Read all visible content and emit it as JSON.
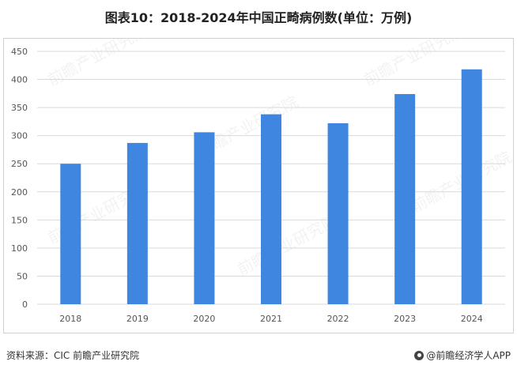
{
  "title": "图表10：2018-2024年中国正畸病例数(单位：万例)",
  "source": "资料来源：CIC 前瞻产业研究院",
  "brand": "@前瞻经济学人APP",
  "watermark": "前瞻产业研究院",
  "colors": {
    "bar": "#3f86e0",
    "grid": "#d9d9d9",
    "axis_text": "#555555"
  },
  "chart_data": {
    "type": "bar",
    "categories": [
      "2018",
      "2019",
      "2020",
      "2021",
      "2022",
      "2023",
      "2024"
    ],
    "values": [
      250,
      287,
      306,
      338,
      322,
      374,
      418
    ],
    "ylim": [
      0,
      450
    ],
    "yticks": [
      0,
      50,
      100,
      150,
      200,
      250,
      300,
      350,
      400,
      450
    ],
    "grid": true
  }
}
